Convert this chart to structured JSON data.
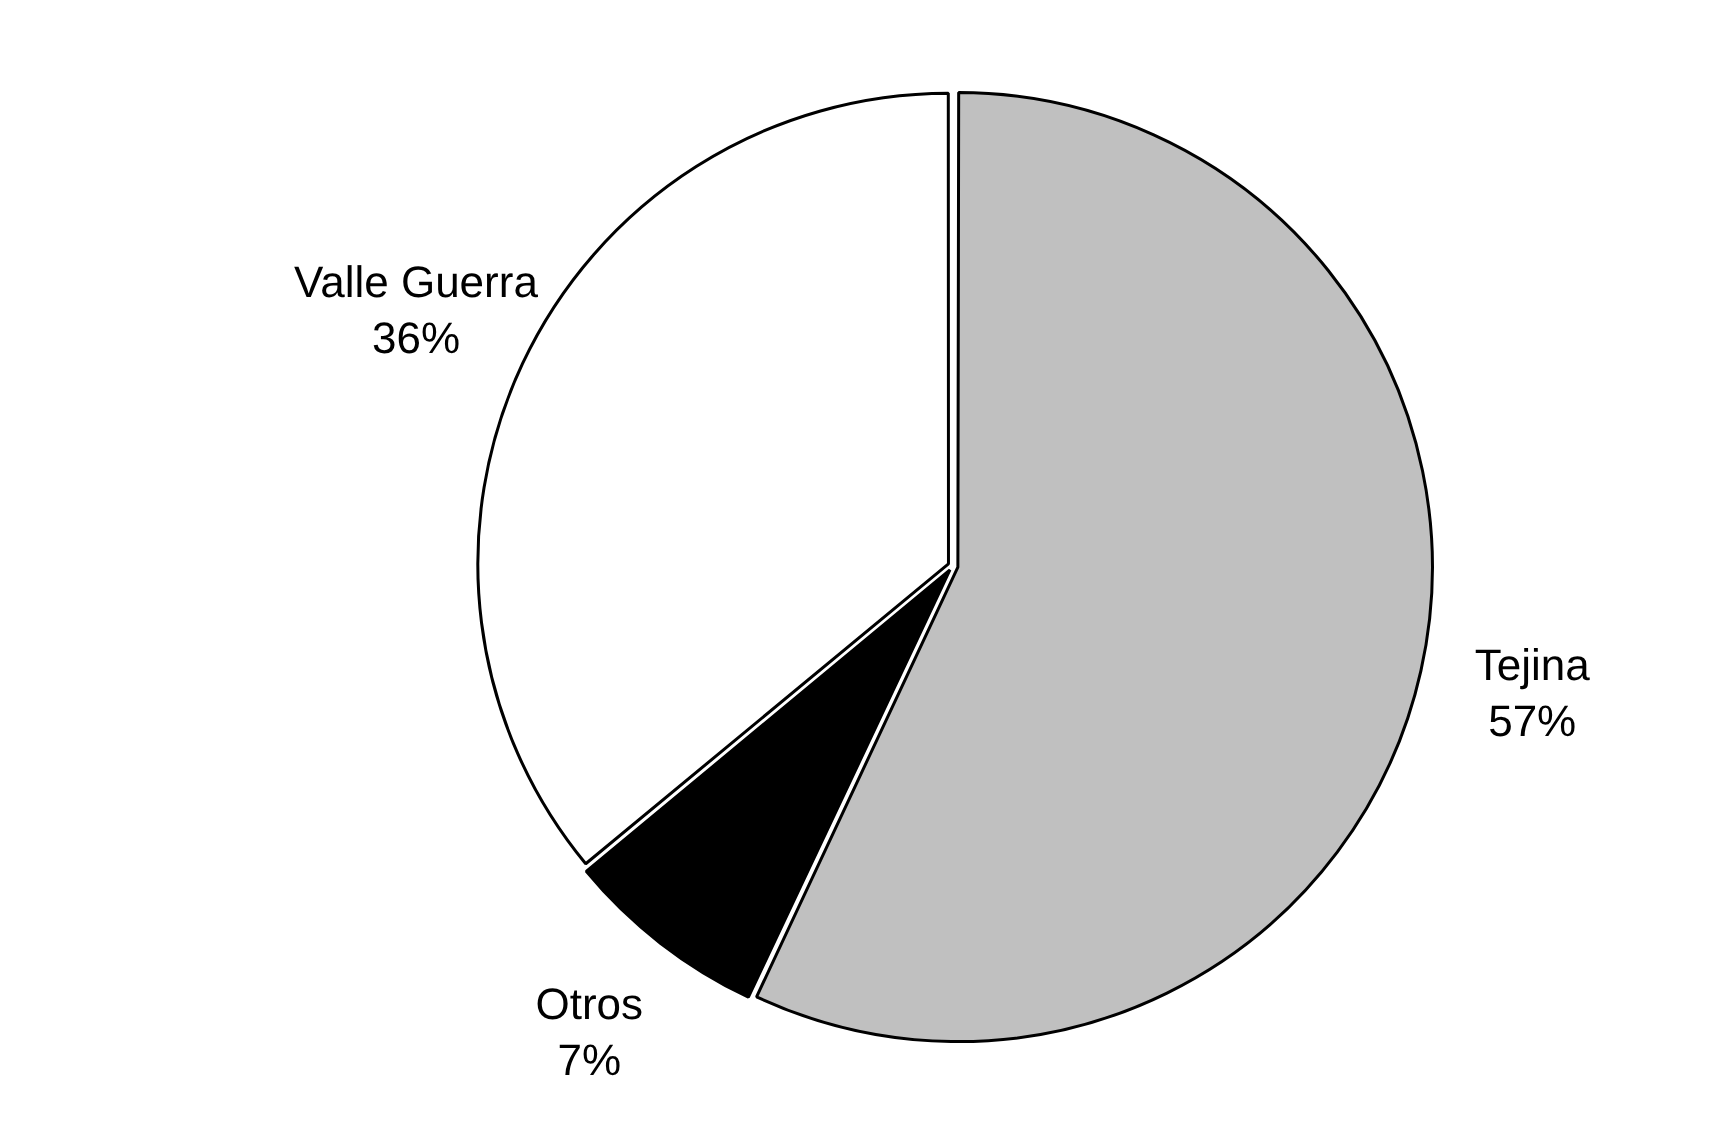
{
  "chart_data": {
    "type": "pie",
    "categories": [
      "Tejina",
      "Otros",
      "Valle Guerra"
    ],
    "values": [
      57,
      7,
      36
    ],
    "value_labels": [
      "57%",
      "7%",
      "36%"
    ],
    "colors": [
      "#c0c0c0",
      "#000000",
      "#ffffff"
    ],
    "legend": false
  }
}
